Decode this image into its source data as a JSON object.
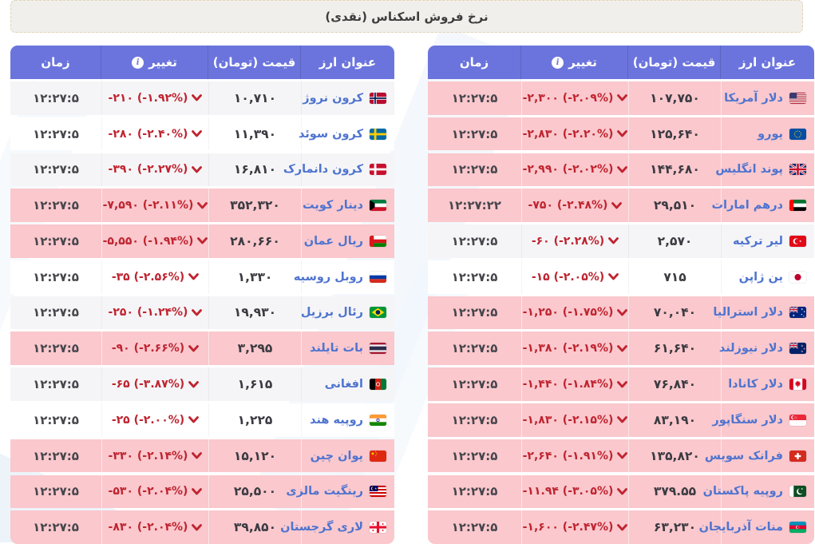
{
  "page_title": "نرخ فروش اسکناس (نقدی)",
  "headers": {
    "currency": "عنوان ارز",
    "price": "قیمت (تومان)",
    "change": "تغییر",
    "time": "زمان",
    "info_glyph": "i"
  },
  "colors": {
    "header_bg": "#6b74dd",
    "pink_row": "#fac8cd",
    "gray_row": "#f5f5f7",
    "change_red": "#bf2430",
    "currency_blue": "#4f74cf"
  },
  "tables": [
    {
      "name": "main",
      "rows": [
        {
          "currency": "دلار آمریکا",
          "flag": "usa",
          "price": "۱۰۷,۷۵۰",
          "change": "-۲,۳۰۰ (-۲.۰۹%)",
          "time": "۱۲:۲۷:۵",
          "bg": "pink"
        },
        {
          "currency": "یورو",
          "flag": "eu",
          "price": "۱۲۵,۶۴۰",
          "change": "-۲,۸۳۰ (-۲.۲۰%)",
          "time": "۱۲:۲۷:۵",
          "bg": "pink"
        },
        {
          "currency": "پوند انگلیس",
          "flag": "uk",
          "price": "۱۴۴,۶۸۰",
          "change": "-۲,۹۹۰ (-۲.۰۲%)",
          "time": "۱۲:۲۷:۵",
          "bg": "pink"
        },
        {
          "currency": "درهم امارات",
          "flag": "uae",
          "price": "۲۹,۵۱۰",
          "change": "-۷۵۰ (-۲.۴۸%)",
          "time": "۱۲:۲۷:۲۲",
          "bg": "pink"
        },
        {
          "currency": "لیر ترکیه",
          "flag": "turkey",
          "price": "۲,۵۷۰",
          "change": "-۶۰ (-۲.۲۸%)",
          "time": "۱۲:۲۷:۵",
          "bg": "gray"
        },
        {
          "currency": "ین ژاپن",
          "flag": "japan",
          "price": "۷۱۵",
          "change": "-۱۵ (-۲.۰۵%)",
          "time": "۱۲:۲۷:۵",
          "bg": "white"
        },
        {
          "currency": "دلار استرالیا",
          "flag": "australia",
          "price": "۷۰,۰۴۰",
          "change": "-۱,۲۵۰ (-۱.۷۵%)",
          "time": "۱۲:۲۷:۵",
          "bg": "pink"
        },
        {
          "currency": "دلار نیوزلند",
          "flag": "newzealand",
          "price": "۶۱,۶۴۰",
          "change": "-۱,۳۸۰ (-۲.۱۹%)",
          "time": "۱۲:۲۷:۵",
          "bg": "pink"
        },
        {
          "currency": "دلار کانادا",
          "flag": "canada",
          "price": "۷۶,۸۴۰",
          "change": "-۱,۴۴۰ (-۱.۸۴%)",
          "time": "۱۲:۲۷:۵",
          "bg": "pink"
        },
        {
          "currency": "دلار سنگاپور",
          "flag": "singapore",
          "price": "۸۳,۱۹۰",
          "change": "-۱,۸۳۰ (-۲.۱۵%)",
          "time": "۱۲:۲۷:۵",
          "bg": "pink"
        },
        {
          "currency": "فرانک سویس",
          "flag": "switzerland",
          "price": "۱۳۵,۸۲۰",
          "change": "-۲,۶۴۰ (-۱.۹۱%)",
          "time": "۱۲:۲۷:۵",
          "bg": "pink"
        },
        {
          "currency": "روپیه پاکستان",
          "flag": "pakistan",
          "price": "۳۷۹.۵۵",
          "change": "-۱۱.۹۴ (-۳.۰۵%)",
          "time": "۱۲:۲۷:۵",
          "bg": "pink"
        },
        {
          "currency": "منات آذربایجان",
          "flag": "azerbaijan",
          "price": "۶۳,۲۳۰",
          "change": "-۱,۶۰۰ (-۲.۴۷%)",
          "time": "۱۲:۲۷:۵",
          "bg": "pink"
        }
      ]
    },
    {
      "name": "secondary",
      "rows": [
        {
          "currency": "کرون نروژ",
          "flag": "norway",
          "price": "۱۰,۷۱۰",
          "change": "-۲۱۰ (-۱.۹۲%)",
          "time": "۱۲:۲۷:۵",
          "bg": "gray"
        },
        {
          "currency": "کرون سوئد",
          "flag": "sweden",
          "price": "۱۱,۳۹۰",
          "change": "-۲۸۰ (-۲.۴۰%)",
          "time": "۱۲:۲۷:۵",
          "bg": "white"
        },
        {
          "currency": "کرون دانمارک",
          "flag": "denmark",
          "price": "۱۶,۸۱۰",
          "change": "-۳۹۰ (-۲.۲۷%)",
          "time": "۱۲:۲۷:۵",
          "bg": "gray"
        },
        {
          "currency": "دینار کویت",
          "flag": "kuwait",
          "price": "۳۵۲,۳۲۰",
          "change": "-۷,۵۹۰ (-۲.۱۱%)",
          "time": "۱۲:۲۷:۵",
          "bg": "pink"
        },
        {
          "currency": "ریال عمان",
          "flag": "oman",
          "price": "۲۸۰,۶۶۰",
          "change": "-۵,۵۵۰ (-۱.۹۴%)",
          "time": "۱۲:۲۷:۵",
          "bg": "pink"
        },
        {
          "currency": "روبل روسیه",
          "flag": "russia",
          "price": "۱,۳۳۰",
          "change": "-۳۵ (-۲.۵۶%)",
          "time": "۱۲:۲۷:۵",
          "bg": "white"
        },
        {
          "currency": "رئال برزیل",
          "flag": "brazil",
          "price": "۱۹,۹۳۰",
          "change": "-۲۵۰ (-۱.۲۴%)",
          "time": "۱۲:۲۷:۵",
          "bg": "gray"
        },
        {
          "currency": "بات تایلند",
          "flag": "thailand",
          "price": "۳,۲۹۵",
          "change": "-۹۰ (-۲.۶۶%)",
          "time": "۱۲:۲۷:۵",
          "bg": "pink"
        },
        {
          "currency": "افغانی",
          "flag": "afghanistan",
          "price": "۱,۶۱۵",
          "change": "-۶۵ (-۳.۸۷%)",
          "time": "۱۲:۲۷:۵",
          "bg": "gray"
        },
        {
          "currency": "روپیه هند",
          "flag": "india",
          "price": "۱,۲۲۵",
          "change": "-۲۵ (-۲.۰۰%)",
          "time": "۱۲:۲۷:۵",
          "bg": "white"
        },
        {
          "currency": "یوان چین",
          "flag": "china",
          "price": "۱۵,۱۲۰",
          "change": "-۳۳۰ (-۲.۱۴%)",
          "time": "۱۲:۲۷:۵",
          "bg": "pink"
        },
        {
          "currency": "رینگیت مالزی",
          "flag": "malaysia",
          "price": "۲۵,۵۰۰",
          "change": "-۵۳۰ (-۲.۰۴%)",
          "time": "۱۲:۲۷:۵",
          "bg": "pink"
        },
        {
          "currency": "لاری گرجستان",
          "flag": "georgia",
          "price": "۳۹,۸۵۰",
          "change": "-۸۳۰ (-۲.۰۴%)",
          "time": "۱۲:۲۷:۵",
          "bg": "pink"
        }
      ]
    }
  ]
}
